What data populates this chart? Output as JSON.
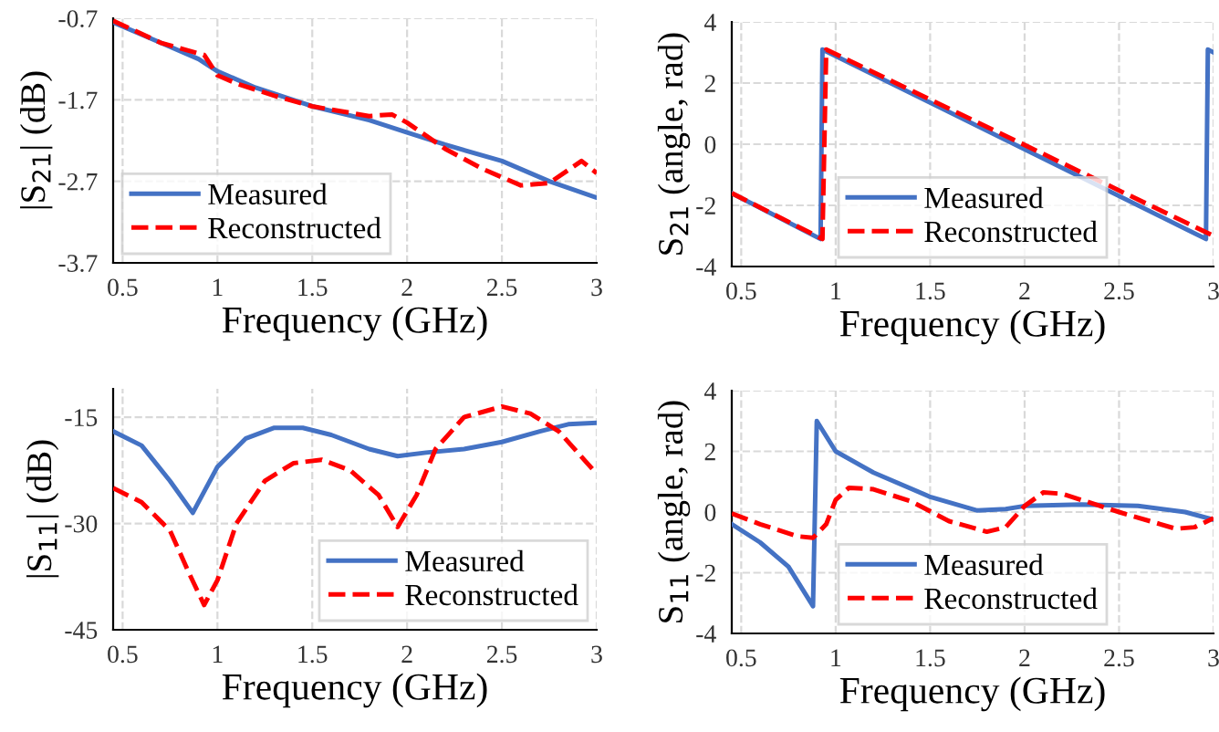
{
  "chart_data": [
    {
      "type": "line",
      "xlabel": "Frequency (GHz)",
      "ylabel": "|S$_{21}$| (dB)",
      "xlim": [
        0.45,
        3.0
      ],
      "xticks": [
        0.5,
        1,
        1.5,
        2,
        2.5,
        3
      ],
      "ylim": [
        -3.7,
        -0.7
      ],
      "yticks": [
        -0.7,
        -1.7,
        -2.7,
        -3.7
      ],
      "grid": true,
      "legend": "bottom left",
      "series": [
        {
          "name": "Measured",
          "color": "#4472c4",
          "line_style": "solid",
          "x": [
            0.45,
            0.7,
            0.9,
            1.0,
            1.2,
            1.5,
            1.8,
            2.0,
            2.2,
            2.5,
            2.75,
            3.0
          ],
          "values": [
            -0.75,
            -1.0,
            -1.2,
            -1.35,
            -1.55,
            -1.78,
            -1.95,
            -2.1,
            -2.25,
            -2.45,
            -2.7,
            -2.9
          ]
        },
        {
          "name": "Reconstructed",
          "color": "#ff0000",
          "line_style": "dashed",
          "x": [
            0.45,
            0.7,
            0.93,
            1.0,
            1.1,
            1.3,
            1.5,
            1.8,
            1.92,
            2.0,
            2.2,
            2.4,
            2.6,
            2.75,
            2.92,
            3.0
          ],
          "values": [
            -0.73,
            -1.0,
            -1.15,
            -1.4,
            -1.5,
            -1.65,
            -1.78,
            -1.9,
            -1.88,
            -1.98,
            -2.3,
            -2.55,
            -2.75,
            -2.72,
            -2.45,
            -2.6
          ]
        }
      ]
    },
    {
      "type": "line",
      "xlabel": "Frequency (GHz)",
      "ylabel": "S$_{21}$ (angle, rad)",
      "xlim": [
        0.45,
        3.0
      ],
      "xticks": [
        0.5,
        1,
        1.5,
        2,
        2.5,
        3
      ],
      "ylim": [
        -4,
        4
      ],
      "yticks": [
        -4,
        -2,
        0,
        2,
        4
      ],
      "grid": true,
      "legend": "bottom",
      "series": [
        {
          "name": "Measured",
          "color": "#4472c4",
          "line_style": "solid",
          "x": [
            0.45,
            0.92,
            0.93,
            2.96,
            2.97,
            3.0
          ],
          "values": [
            -1.6,
            -3.1,
            3.1,
            -3.1,
            3.1,
            3.0
          ]
        },
        {
          "name": "Reconstructed",
          "color": "#ff0000",
          "line_style": "dashed",
          "x": [
            0.45,
            0.93,
            0.95,
            3.0
          ],
          "values": [
            -1.6,
            -3.1,
            3.1,
            -3.0
          ]
        }
      ]
    },
    {
      "type": "line",
      "xlabel": "Frequency (GHz)",
      "ylabel": "|S$_{11}$| (dB)",
      "xlim": [
        0.45,
        3.0
      ],
      "xticks": [
        0.5,
        1,
        1.5,
        2,
        2.5,
        3
      ],
      "ylim": [
        -45,
        -11
      ],
      "yticks": [
        -45,
        -30,
        -15
      ],
      "grid": true,
      "legend": "bottom right",
      "series": [
        {
          "name": "Measured",
          "color": "#4472c4",
          "line_style": "solid",
          "x": [
            0.45,
            0.6,
            0.75,
            0.87,
            1.0,
            1.15,
            1.3,
            1.45,
            1.6,
            1.8,
            1.95,
            2.1,
            2.3,
            2.5,
            2.7,
            2.85,
            3.0
          ],
          "values": [
            -17,
            -19,
            -24,
            -28.5,
            -22,
            -18,
            -16.5,
            -16.5,
            -17.5,
            -19.5,
            -20.5,
            -20,
            -19.5,
            -18.5,
            -17,
            -16,
            -15.8
          ]
        },
        {
          "name": "Reconstructed",
          "color": "#ff0000",
          "line_style": "dashed",
          "x": [
            0.45,
            0.6,
            0.75,
            0.85,
            0.93,
            1.0,
            1.1,
            1.25,
            1.4,
            1.55,
            1.7,
            1.85,
            1.95,
            2.05,
            2.15,
            2.3,
            2.5,
            2.65,
            2.8,
            3.0
          ],
          "values": [
            -25,
            -27,
            -31,
            -37,
            -41.5,
            -38,
            -30,
            -24,
            -21.5,
            -21,
            -22.5,
            -26,
            -30.5,
            -26,
            -19.5,
            -15,
            -13.5,
            -14.5,
            -17,
            -23
          ]
        }
      ]
    },
    {
      "type": "line",
      "xlabel": "Frequency (GHz)",
      "ylabel": "S$_{11}$ (angle, rad)",
      "xlim": [
        0.45,
        3.0
      ],
      "xticks": [
        0.5,
        1,
        1.5,
        2,
        2.5,
        3
      ],
      "ylim": [
        -4,
        4
      ],
      "yticks": [
        -4,
        -2,
        0,
        2,
        4
      ],
      "grid": true,
      "legend": "bottom",
      "series": [
        {
          "name": "Measured",
          "color": "#4472c4",
          "line_style": "solid",
          "x": [
            0.45,
            0.6,
            0.75,
            0.85,
            0.88,
            0.9,
            1.0,
            1.2,
            1.5,
            1.75,
            1.9,
            2.0,
            2.3,
            2.6,
            2.85,
            3.0
          ],
          "values": [
            -0.4,
            -1.0,
            -1.8,
            -2.8,
            -3.1,
            3.0,
            2.0,
            1.3,
            0.5,
            0.05,
            0.1,
            0.2,
            0.25,
            0.2,
            0.0,
            -0.25
          ]
        },
        {
          "name": "Reconstructed",
          "color": "#ff0000",
          "line_style": "dashed",
          "x": [
            0.45,
            0.6,
            0.8,
            0.88,
            0.95,
            1.0,
            1.07,
            1.2,
            1.4,
            1.6,
            1.8,
            1.9,
            2.0,
            2.1,
            2.2,
            2.5,
            2.8,
            2.9,
            3.0
          ],
          "values": [
            -0.05,
            -0.4,
            -0.8,
            -0.85,
            -0.4,
            0.4,
            0.8,
            0.75,
            0.35,
            -0.3,
            -0.65,
            -0.5,
            0.2,
            0.65,
            0.6,
            0.0,
            -0.55,
            -0.5,
            -0.2
          ]
        }
      ]
    }
  ]
}
